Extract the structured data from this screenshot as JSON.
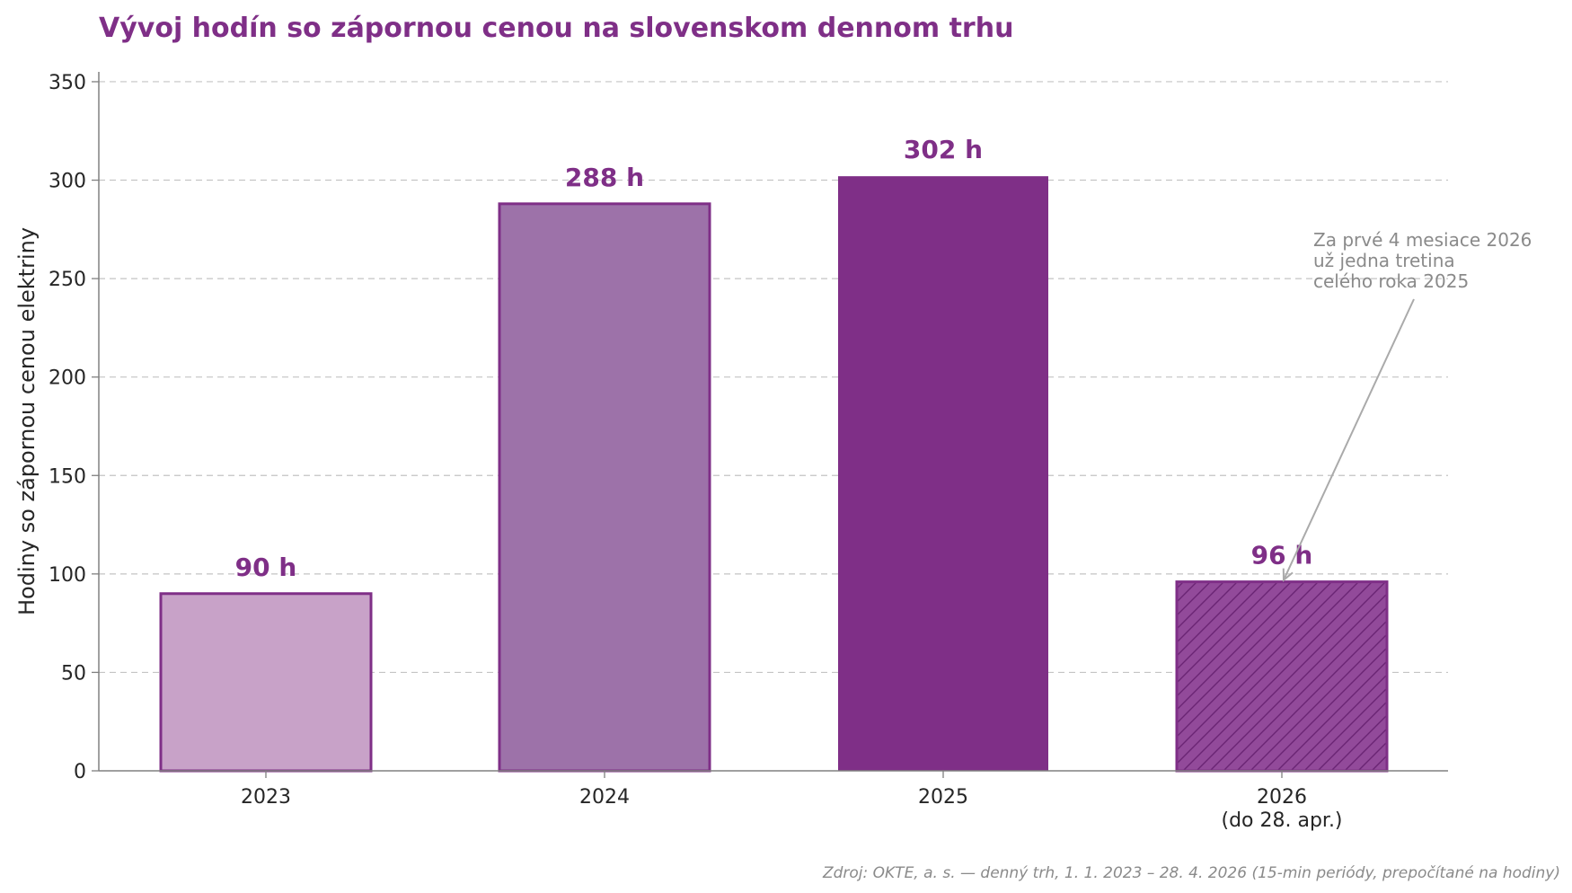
{
  "colors": {
    "accent": "#7f2f87",
    "bar_2023": "#c8a2c8",
    "bar_2024": "#9d72a9",
    "bar_2025": "#7f2f87",
    "bar_2026": "#924a9a",
    "grid": "#c4c4c4",
    "axis": "#808080",
    "muted": "#8a8a8a"
  },
  "chart_data": {
    "type": "bar",
    "title": "Vývoj hodín so zápornou cenou na slovenskom dennom trhu",
    "ylabel": "Hodiny so zápornou cenou elektriny",
    "xlabel": "",
    "categories": [
      "2023",
      "2024",
      "2025",
      "2026"
    ],
    "category_sublabels": [
      "",
      "",
      "",
      "(do 28. apr.)"
    ],
    "values": [
      90,
      288,
      302,
      96
    ],
    "data_labels": [
      "90 h",
      "288 h",
      "302 h",
      "96 h"
    ],
    "bar_colors": [
      "#c8a2c8",
      "#9d72a9",
      "#7f2f87",
      "#924a9a"
    ],
    "hatched": [
      false,
      false,
      false,
      true
    ],
    "ylim": [
      0,
      355
    ],
    "yticks": [
      0,
      50,
      100,
      150,
      200,
      250,
      300,
      350
    ],
    "grid": true,
    "annotation": {
      "lines": [
        "Za prvé 4 mesiace 2026",
        "už jedna tretina",
        "celého roka 2025"
      ],
      "target_category": "2026",
      "target_value": 96
    },
    "source": "Zdroj: OKTE, a. s. — denný trh, 1. 1. 2023 – 28. 4. 2026 (15-min periódy, prepočítané na hodiny)"
  }
}
